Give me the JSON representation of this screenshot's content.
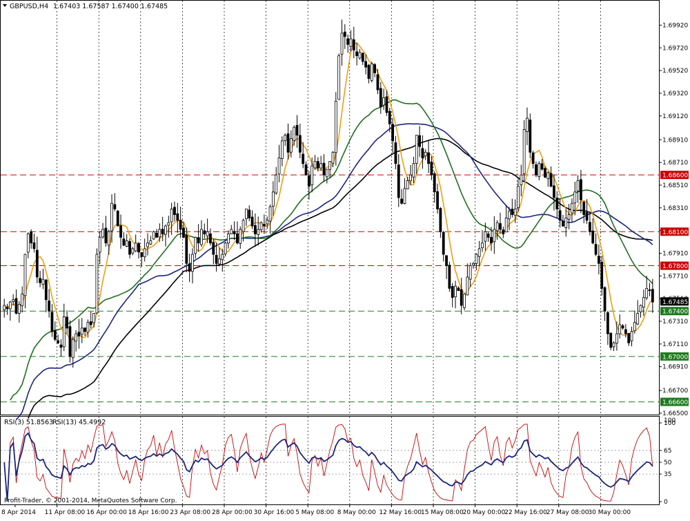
{
  "chart_header": {
    "symbol_timeframe": "GBPUSD,H4",
    "ohlc": "1.67403 1.67587 1.67400 1.67485"
  },
  "rsi_header": {
    "rsi3": "RSI(3) 51.8563",
    "rsi13": "RSI(13) 45.4992"
  },
  "copyright": "Profit-Trader, © 2001-2014, MetaQuotes Software Corp.",
  "colors": {
    "candle": "#000000",
    "ma_fast": "#f39c12",
    "ma_green": "#1e6e1e",
    "ma_navy": "#1a237e",
    "ma_black": "#000000",
    "level_red": "#cc0000",
    "level_green": "#1e7b1e",
    "rsi3": "#cc0000",
    "rsi13": "#1a237e"
  },
  "price_axis": {
    "min": 1.665,
    "max": 1.7002,
    "ticks": [
      "1.69920",
      "1.69720",
      "1.69520",
      "1.69320",
      "1.69120",
      "1.68910",
      "1.68710",
      "1.68510",
      "1.68310",
      "1.68110",
      "1.67910",
      "1.67710",
      "1.67510",
      "1.67310",
      "1.67110",
      "1.66910",
      "1.66700",
      "1.66500"
    ]
  },
  "current_price": "1.67485",
  "levels": [
    {
      "value": 1.686,
      "label": "1.68600",
      "type": "resistance"
    },
    {
      "value": 1.681,
      "label": "1.68100",
      "type": "resistance"
    },
    {
      "value": 1.678,
      "label": "1.67800",
      "type": "resistance"
    },
    {
      "value": 1.674,
      "label": "1.67400",
      "type": "support"
    },
    {
      "value": 1.67,
      "label": "1.67000",
      "type": "support"
    },
    {
      "value": 1.666,
      "label": "1.66600",
      "type": "support"
    }
  ],
  "time_axis": [
    "8 Apr 2014",
    "11 Apr 08:00",
    "16 Apr 00:00",
    "18 Apr 16:00",
    "23 Apr 08:00",
    "28 Apr 00:00",
    "30 Apr 16:00",
    "5 May 08:00",
    "8 May 00:00",
    "12 May 16:00",
    "15 May 08:00",
    "20 May 00:00",
    "22 May 16:00",
    "27 May 08:00",
    "30 May 00:00"
  ],
  "rsi_axis": {
    "ticks": [
      "100",
      "65",
      "50",
      "35",
      "0"
    ],
    "top_label": "100",
    "levels": [
      65,
      50,
      35
    ]
  },
  "chart_data": {
    "type": "candlestick",
    "symbol": "GBPUSD",
    "timeframe": "H4",
    "close_series": [
      1.6745,
      1.6742,
      1.6748,
      1.675,
      1.6738,
      1.6746,
      1.6755,
      1.679,
      1.6808,
      1.68,
      1.6795,
      1.677,
      1.6765,
      1.6768,
      1.675,
      1.674,
      1.6722,
      1.6715,
      1.6712,
      1.6708,
      1.6735,
      1.6725,
      1.67,
      1.6715,
      1.672,
      1.6718,
      1.6725,
      1.6722,
      1.673,
      1.6728,
      1.6738,
      1.679,
      1.6805,
      1.6812,
      1.68,
      1.681,
      1.6835,
      1.683,
      1.6815,
      1.6805,
      1.6798,
      1.6802,
      1.679,
      1.6795,
      1.68,
      1.6792,
      1.6788,
      1.6795,
      1.68,
      1.6802,
      1.681,
      1.6805,
      1.6812,
      1.6808,
      1.6815,
      1.6818,
      1.683,
      1.6825,
      1.682,
      1.6812,
      1.6805,
      1.6782,
      1.6775,
      1.679,
      1.6805,
      1.68,
      1.6812,
      1.6808,
      1.681,
      1.68,
      1.679,
      1.6782,
      1.6786,
      1.679,
      1.68,
      1.6808,
      1.6812,
      1.6808,
      1.68,
      1.6812,
      1.682,
      1.683,
      1.6822,
      1.6815,
      1.6808,
      1.6812,
      1.6818,
      1.6815,
      1.682,
      1.6832,
      1.6845,
      1.686,
      1.6875,
      1.689,
      1.6895,
      1.688,
      1.6892,
      1.6902,
      1.6895,
      1.688,
      1.687,
      1.686,
      1.685,
      1.6868,
      1.6872,
      1.6866,
      1.687,
      1.686,
      1.6865,
      1.6872,
      1.688,
      1.6925,
      1.6965,
      1.6985,
      1.6982,
      1.6975,
      1.698,
      1.697,
      1.6965,
      1.6968,
      1.696,
      1.6955,
      1.6945,
      1.6958,
      1.695,
      1.6935,
      1.692,
      1.6928,
      1.6915,
      1.6905,
      1.689,
      1.687,
      1.684,
      1.6835,
      1.6848,
      1.6855,
      1.686,
      1.687,
      1.6895,
      1.6885,
      1.6875,
      1.688,
      1.687,
      1.686,
      1.6845,
      1.683,
      1.681,
      1.679,
      1.678,
      1.676,
      1.6752,
      1.6762,
      1.6758,
      1.6745,
      1.6755,
      1.677,
      1.678,
      1.6782,
      1.679,
      1.6795,
      1.68,
      1.681,
      1.6805,
      1.68,
      1.6812,
      1.6818,
      1.6812,
      1.6808,
      1.6822,
      1.6828,
      1.6825,
      1.683,
      1.685,
      1.686,
      1.69,
      1.691,
      1.688,
      1.687,
      1.686,
      1.687,
      1.6865,
      1.6858,
      1.6862,
      1.685,
      1.684,
      1.683,
      1.682,
      1.6815,
      1.6822,
      1.6825,
      1.6835,
      1.6845,
      1.6855,
      1.6838,
      1.6825,
      1.682,
      1.681,
      1.68,
      1.679,
      1.6782,
      1.676,
      1.674,
      1.672,
      1.6708,
      1.6712,
      1.672,
      1.6728,
      1.6725,
      1.672,
      1.6712,
      1.6722,
      1.673,
      1.6738,
      1.6745,
      1.6752,
      1.676,
      1.6758,
      1.6748
    ],
    "moving_averages": [
      "fast (orange)",
      "medium (green)",
      "slow (navy)",
      "slowest (black)"
    ],
    "rsi_periods": [
      3,
      13
    ]
  }
}
